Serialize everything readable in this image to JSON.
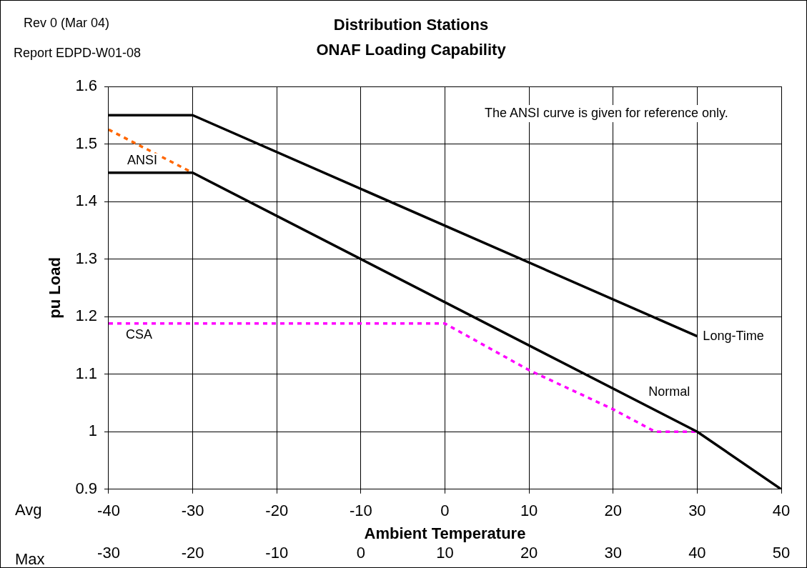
{
  "chart_data": {
    "type": "line",
    "title": "Distribution Stations",
    "subtitle": "ONAF Loading Capability",
    "xlabel": "Ambient Temperature",
    "ylabel": "pu Load",
    "xlim": [
      -40,
      40
    ],
    "xticks": [
      -40,
      -30,
      -20,
      -10,
      0,
      10,
      20,
      30,
      40
    ],
    "x2lim": [
      -30,
      50
    ],
    "x2ticks": [
      -30,
      -20,
      -10,
      0,
      10,
      20,
      30,
      40,
      50
    ],
    "ylim": [
      0.9,
      1.6
    ],
    "yticks": [
      0.9,
      1,
      1.1,
      1.2,
      1.3,
      1.4,
      1.5,
      1.6
    ],
    "grid": true,
    "legend": false,
    "marker": "none",
    "series": [
      {
        "name": "Long-Time",
        "color": "#000000",
        "line_style": "solid",
        "x": [
          -40,
          -30,
          30
        ],
        "values": [
          1.55,
          1.55,
          1.166
        ]
      },
      {
        "name": "Normal",
        "color": "#000000",
        "line_style": "solid",
        "x": [
          -40,
          -30,
          30,
          40
        ],
        "values": [
          1.45,
          1.45,
          1.0,
          0.9
        ]
      },
      {
        "name": "ANSI",
        "color": "#ff6600",
        "line_style": "dashed",
        "x": [
          -40,
          -30
        ],
        "values": [
          1.525,
          1.45
        ]
      },
      {
        "name": "CSA",
        "color": "#ff00ff",
        "line_style": "dashed",
        "x": [
          -40,
          0,
          10,
          20,
          25,
          30
        ],
        "values": [
          1.188,
          1.188,
          1.107,
          1.039,
          1.0,
          1.0
        ]
      }
    ],
    "annotations": [
      "Rev 0 (Mar 04)",
      "Report EDPD-W01-08",
      "The ANSI curve is given for reference only.",
      "Avg",
      "Max"
    ]
  }
}
